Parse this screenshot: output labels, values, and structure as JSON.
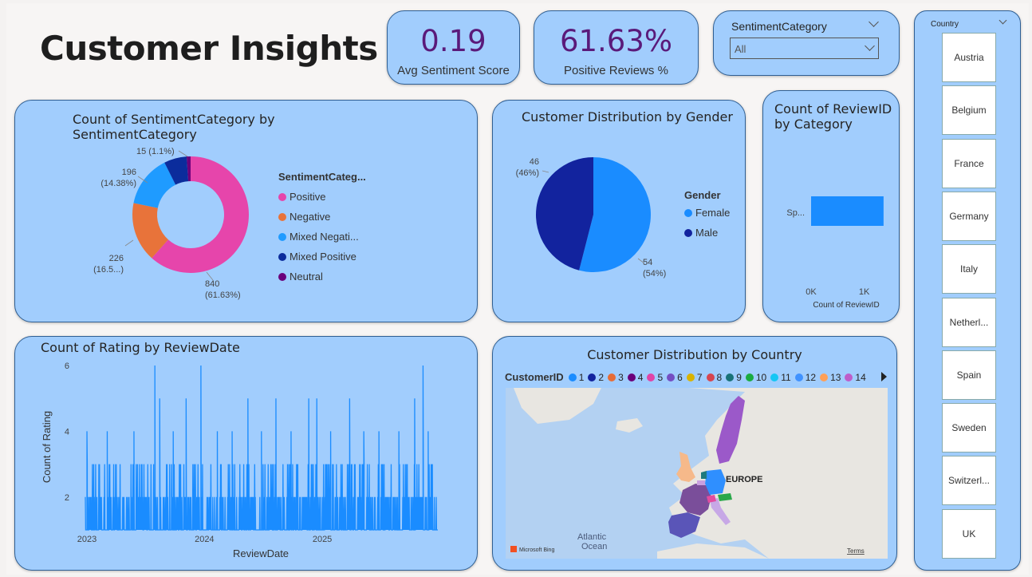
{
  "page": {
    "title": "Customer Insights"
  },
  "kpis": [
    {
      "value": "0.19",
      "label": "Avg Sentiment Score"
    },
    {
      "value": "61.63%",
      "label": "Positive Reviews %"
    }
  ],
  "sentiment_slicer": {
    "title": "SentimentCategory",
    "selected": "All"
  },
  "country_slicer": {
    "title": "Country",
    "items": [
      "Austria",
      "Belgium",
      "France",
      "Germany",
      "Italy",
      "Netherl...",
      "Spain",
      "Sweden",
      "Switzerl...",
      "UK"
    ]
  },
  "colors": {
    "positive": "#e645ab",
    "negative": "#e8733a",
    "mixed_negative": "#1f9bff",
    "mixed_positive": "#0b2c9c",
    "neutral": "#6b007b",
    "female": "#1a8cff",
    "male": "#12239e",
    "bar": "#1a8cff"
  },
  "chart_data": [
    {
      "type": "donut",
      "title": "Count of SentimentCategory by SentimentCategory",
      "legend_title": "SentimentCateg...",
      "legend": [
        "Positive",
        "Negative",
        "Mixed Negati...",
        "Mixed Positive",
        "Neutral"
      ],
      "slices": [
        {
          "name": "Positive",
          "value": 840,
          "label": "840",
          "pct": "(61.63%)"
        },
        {
          "name": "Negative",
          "value": 226,
          "label": "226",
          "pct": "(16.5...)"
        },
        {
          "name": "Mixed Negative",
          "value": 196,
          "label": "196",
          "pct": "(14.38%)"
        },
        {
          "name": "Mixed Positive",
          "value": 86,
          "label": "",
          "pct": ""
        },
        {
          "name": "Neutral",
          "value": 15,
          "label": "15 (1.1%)",
          "pct": ""
        }
      ]
    },
    {
      "type": "pie",
      "title": "Customer Distribution by Gender",
      "legend_title": "Gender",
      "legend": [
        "Female",
        "Male"
      ],
      "slices": [
        {
          "name": "Female",
          "value": 54,
          "label": "54",
          "pct": "(54%)"
        },
        {
          "name": "Male",
          "value": 46,
          "label": "46",
          "pct": "(46%)"
        }
      ]
    },
    {
      "type": "bar",
      "orientation": "horizontal",
      "title": "Count of ReviewID by Category",
      "categories": [
        "Sp..."
      ],
      "values": [
        1363
      ],
      "xlim": [
        0,
        1500
      ],
      "xticks": [
        "0K",
        "1K"
      ],
      "xlabel": "Count of ReviewID"
    },
    {
      "type": "line",
      "title": "Count of Rating by ReviewDate",
      "xlabel": "ReviewDate",
      "ylabel": "Count of Rating",
      "xticks": [
        "2023",
        "2024",
        "2025"
      ],
      "yticks": [
        "2",
        "4",
        "6"
      ],
      "xlim": [
        "2023-01-01",
        "2025-12-31"
      ],
      "ylim": [
        1,
        6
      ],
      "peaks": [
        {
          "x": "2023-01-06",
          "y": 4
        },
        {
          "x": "2023-03-10",
          "y": 4
        },
        {
          "x": "2023-06-01",
          "y": 4
        },
        {
          "x": "2023-08-05",
          "y": 6
        },
        {
          "x": "2023-08-20",
          "y": 5
        },
        {
          "x": "2023-10-01",
          "y": 4
        },
        {
          "x": "2023-11-10",
          "y": 5
        },
        {
          "x": "2023-12-26",
          "y": 6
        },
        {
          "x": "2024-02-15",
          "y": 4
        },
        {
          "x": "2024-04-01",
          "y": 4
        },
        {
          "x": "2024-05-20",
          "y": 5
        },
        {
          "x": "2024-07-01",
          "y": 4
        },
        {
          "x": "2024-08-15",
          "y": 5
        },
        {
          "x": "2024-10-01",
          "y": 4
        },
        {
          "x": "2024-11-25",
          "y": 5
        },
        {
          "x": "2024-12-20",
          "y": 5
        },
        {
          "x": "2025-02-01",
          "y": 4
        },
        {
          "x": "2025-04-01",
          "y": 5
        },
        {
          "x": "2025-05-15",
          "y": 4
        },
        {
          "x": "2025-07-01",
          "y": 4
        },
        {
          "x": "2025-09-01",
          "y": 4
        },
        {
          "x": "2025-10-20",
          "y": 5
        },
        {
          "x": "2025-11-15",
          "y": 6
        },
        {
          "x": "2025-12-01",
          "y": 4
        }
      ]
    }
  ],
  "map": {
    "title": "Customer Distribution by Country",
    "legend_title": "CustomerID",
    "legend": [
      {
        "label": "1",
        "color": "#1a8cff"
      },
      {
        "label": "2",
        "color": "#12239e"
      },
      {
        "label": "3",
        "color": "#e66c37"
      },
      {
        "label": "4",
        "color": "#6b007b"
      },
      {
        "label": "5",
        "color": "#e044a7"
      },
      {
        "label": "6",
        "color": "#744ec2"
      },
      {
        "label": "7",
        "color": "#d9b300"
      },
      {
        "label": "8",
        "color": "#d64550"
      },
      {
        "label": "9",
        "color": "#197278"
      },
      {
        "label": "10",
        "color": "#1aab40"
      },
      {
        "label": "11",
        "color": "#15c6f4"
      },
      {
        "label": "12",
        "color": "#4092ff"
      },
      {
        "label": "13",
        "color": "#ffa058"
      },
      {
        "label": "14",
        "color": "#be5dc9"
      }
    ],
    "region_label": "EUROPE",
    "ocean_label_1": "Atlantic",
    "ocean_label_2": "Ocean",
    "attribution": "Microsoft Bing",
    "terms": "Terms"
  }
}
